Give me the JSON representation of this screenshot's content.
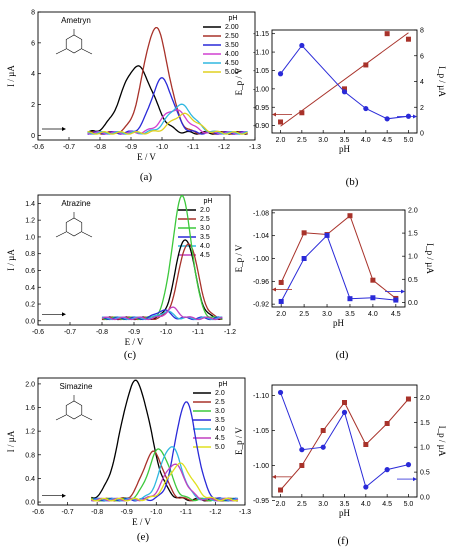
{
  "chart_data": [
    {
      "id": "a",
      "type": "line",
      "caption": "(a)",
      "title": "Ametryn",
      "xlabel": "E / V",
      "ylabel": "I / µA",
      "legend_title": "pH",
      "xlim": [
        -0.6,
        -1.3
      ],
      "ylim": [
        -0.3,
        8
      ],
      "xticks": [
        "-0.6",
        "-0.7",
        "-0.8",
        "-0.9",
        "-1.0",
        "-1.1",
        "-1.2",
        "-1.3"
      ],
      "yticks": [
        "0",
        "2",
        "4",
        "6",
        "8"
      ],
      "series": [
        {
          "name": "2.00",
          "color": "#000000",
          "peak_x": -0.92,
          "peak_y": 4.3,
          "width": 0.05
        },
        {
          "name": "2.50",
          "color": "#a8322a",
          "peak_x": -0.98,
          "peak_y": 6.8,
          "width": 0.04
        },
        {
          "name": "3.50",
          "color": "#2a2ad8",
          "peak_x": -1.0,
          "peak_y": 3.5,
          "width": 0.035
        },
        {
          "name": "4.00",
          "color": "#d040d0",
          "peak_x": -1.04,
          "peak_y": 1.5,
          "width": 0.04
        },
        {
          "name": "4.50",
          "color": "#30b8e0",
          "peak_x": -1.06,
          "peak_y": 1.8,
          "width": 0.04
        },
        {
          "name": "5.00",
          "color": "#e0d020",
          "peak_x": -1.07,
          "peak_y": 1.2,
          "width": 0.04
        }
      ]
    },
    {
      "id": "b",
      "type": "line",
      "caption": "(b)",
      "xlabel": "pH",
      "ylabel": "E_p / V",
      "y2label": "I_p / µA",
      "xlim": [
        1.8,
        5.2
      ],
      "ylim": [
        -0.88,
        -1.16
      ],
      "y2lim": [
        0,
        8
      ],
      "xticks": [
        "2.0",
        "2.5",
        "3.0",
        "3.5",
        "4.0",
        "4.5",
        "5.0"
      ],
      "yticks": [
        "-0.90",
        "-0.95",
        "-1.00",
        "-1.05",
        "-1.10",
        "-1.15"
      ],
      "y2ticks": [
        "0",
        "2",
        "4",
        "6",
        "8"
      ],
      "x": [
        2.0,
        2.5,
        3.5,
        4.0,
        4.5,
        5.0
      ],
      "series": [
        {
          "name": "E_p",
          "axis": "left",
          "color": "#a8322a",
          "marker": "square",
          "line": "fit",
          "values": [
            -0.91,
            -0.935,
            -1.0,
            -1.065,
            -1.15,
            -1.135
          ]
        },
        {
          "name": "I_p",
          "axis": "right",
          "color": "#2a2ad8",
          "marker": "circle",
          "line": "connect",
          "values": [
            4.6,
            6.8,
            3.2,
            1.9,
            1.1,
            1.3
          ]
        }
      ]
    },
    {
      "id": "c",
      "type": "line",
      "caption": "(c)",
      "title": "Atrazine",
      "xlabel": "E / V",
      "ylabel": "I / µA",
      "legend_title": "pH",
      "xlim": [
        -0.6,
        -1.2
      ],
      "ylim": [
        -0.05,
        1.5
      ],
      "xticks": [
        "-0.6",
        "-0.7",
        "-0.8",
        "-0.9",
        "-1.0",
        "-1.1",
        "-1.2"
      ],
      "yticks": [
        "0.0",
        "0.2",
        "0.4",
        "0.6",
        "0.8",
        "1.0",
        "1.2",
        "1.4"
      ],
      "series": [
        {
          "name": "2.0",
          "color": "#000000",
          "peak_x": -1.06,
          "peak_y": 0.95,
          "width": 0.03
        },
        {
          "name": "2.5",
          "color": "#a8322a",
          "peak_x": -1.07,
          "peak_y": 0.9,
          "width": 0.03
        },
        {
          "name": "3.0",
          "color": "#3cc83c",
          "peak_x": -1.05,
          "peak_y": 1.45,
          "width": 0.03
        },
        {
          "name": "3.5",
          "color": "#2a2ad8",
          "peak_x": -0.99,
          "peak_y": 0.1,
          "width": 0.02
        },
        {
          "name": "4.0",
          "color": "#30b8e0",
          "peak_x": -1.0,
          "peak_y": 0.08,
          "width": 0.02
        },
        {
          "name": "4.5",
          "color": "#c040c0",
          "peak_x": -1.02,
          "peak_y": 0.12,
          "width": 0.02
        }
      ]
    },
    {
      "id": "d",
      "type": "line",
      "caption": "(d)",
      "xlabel": "pH",
      "ylabel": "E_p / V",
      "y2label": "I_p / µA",
      "xlim": [
        1.8,
        4.7
      ],
      "ylim": [
        -0.915,
        -1.085
      ],
      "y2lim": [
        -0.1,
        2.0
      ],
      "xticks": [
        "2.0",
        "2.5",
        "3.0",
        "3.5",
        "4.0",
        "4.5"
      ],
      "yticks": [
        "-0.92",
        "-0.96",
        "-1.00",
        "-1.04",
        "-1.08"
      ],
      "y2ticks": [
        "0.0",
        "0.5",
        "1.0",
        "1.5",
        "2.0"
      ],
      "x": [
        2.0,
        2.5,
        3.0,
        3.5,
        4.0,
        4.5
      ],
      "series": [
        {
          "name": "E_p",
          "axis": "left",
          "color": "#a8322a",
          "marker": "square",
          "line": "connect",
          "values": [
            -0.958,
            -1.045,
            -1.042,
            -1.075,
            -0.962,
            -0.93
          ]
        },
        {
          "name": "I_p",
          "axis": "right",
          "color": "#2a2ad8",
          "marker": "square",
          "line": "connect",
          "values": [
            0.02,
            0.95,
            1.45,
            0.08,
            0.1,
            0.05
          ]
        }
      ]
    },
    {
      "id": "e",
      "type": "line",
      "caption": "(e)",
      "title": "Simazine",
      "xlabel": "E / V",
      "ylabel": "I / µA",
      "legend_title": "pH",
      "xlim": [
        -0.6,
        -1.3
      ],
      "ylim": [
        -0.05,
        2.1
      ],
      "xticks": [
        "-0.6",
        "-0.7",
        "-0.8",
        "-0.9",
        "-1.0",
        "-1.1",
        "-1.2",
        "-1.3"
      ],
      "yticks": [
        "0.0",
        "0.4",
        "0.8",
        "1.2",
        "1.6",
        "2.0"
      ],
      "series": [
        {
          "name": "2.0",
          "color": "#000000",
          "peak_x": -0.93,
          "peak_y": 2.0,
          "width": 0.05
        },
        {
          "name": "2.5",
          "color": "#a8322a",
          "peak_x": -0.99,
          "peak_y": 0.8,
          "width": 0.035
        },
        {
          "name": "3.0",
          "color": "#3cc83c",
          "peak_x": -1.01,
          "peak_y": 0.85,
          "width": 0.035
        },
        {
          "name": "3.5",
          "color": "#2a2ad8",
          "peak_x": -1.1,
          "peak_y": 1.65,
          "width": 0.035
        },
        {
          "name": "4.0",
          "color": "#30b8e0",
          "peak_x": -1.05,
          "peak_y": 0.9,
          "width": 0.035
        },
        {
          "name": "4.5",
          "color": "#c040c0",
          "peak_x": -1.06,
          "peak_y": 0.6,
          "width": 0.035
        },
        {
          "name": "5.0",
          "color": "#e0e020",
          "peak_x": -1.08,
          "peak_y": 0.6,
          "width": 0.04
        }
      ]
    },
    {
      "id": "f",
      "type": "line",
      "caption": "(f)",
      "xlabel": "pH",
      "ylabel": "E_p / V",
      "y2label": "I_p / µA",
      "xlim": [
        1.8,
        5.2
      ],
      "ylim": [
        -0.955,
        -1.115
      ],
      "y2lim": [
        0,
        2.25
      ],
      "xticks": [
        "2.0",
        "2.5",
        "3.0",
        "3.5",
        "4.0",
        "4.5",
        "5.0"
      ],
      "yticks": [
        "-0.95",
        "-1.00",
        "-1.05",
        "-1.10"
      ],
      "y2ticks": [
        "0.0",
        "0.5",
        "1.0",
        "1.5",
        "2.0"
      ],
      "x": [
        2.0,
        2.5,
        3.0,
        3.5,
        4.0,
        4.5,
        5.0
      ],
      "series": [
        {
          "name": "E_p",
          "axis": "left",
          "color": "#a8322a",
          "marker": "square",
          "line": "connect",
          "values": [
            -0.965,
            -1.0,
            -1.05,
            -1.09,
            -1.03,
            -1.06,
            -1.095
          ]
        },
        {
          "name": "I_p",
          "axis": "right",
          "color": "#2a2ad8",
          "marker": "circle",
          "line": "connect",
          "values": [
            2.1,
            0.95,
            1.0,
            1.7,
            0.2,
            0.55,
            0.65
          ]
        }
      ]
    }
  ]
}
